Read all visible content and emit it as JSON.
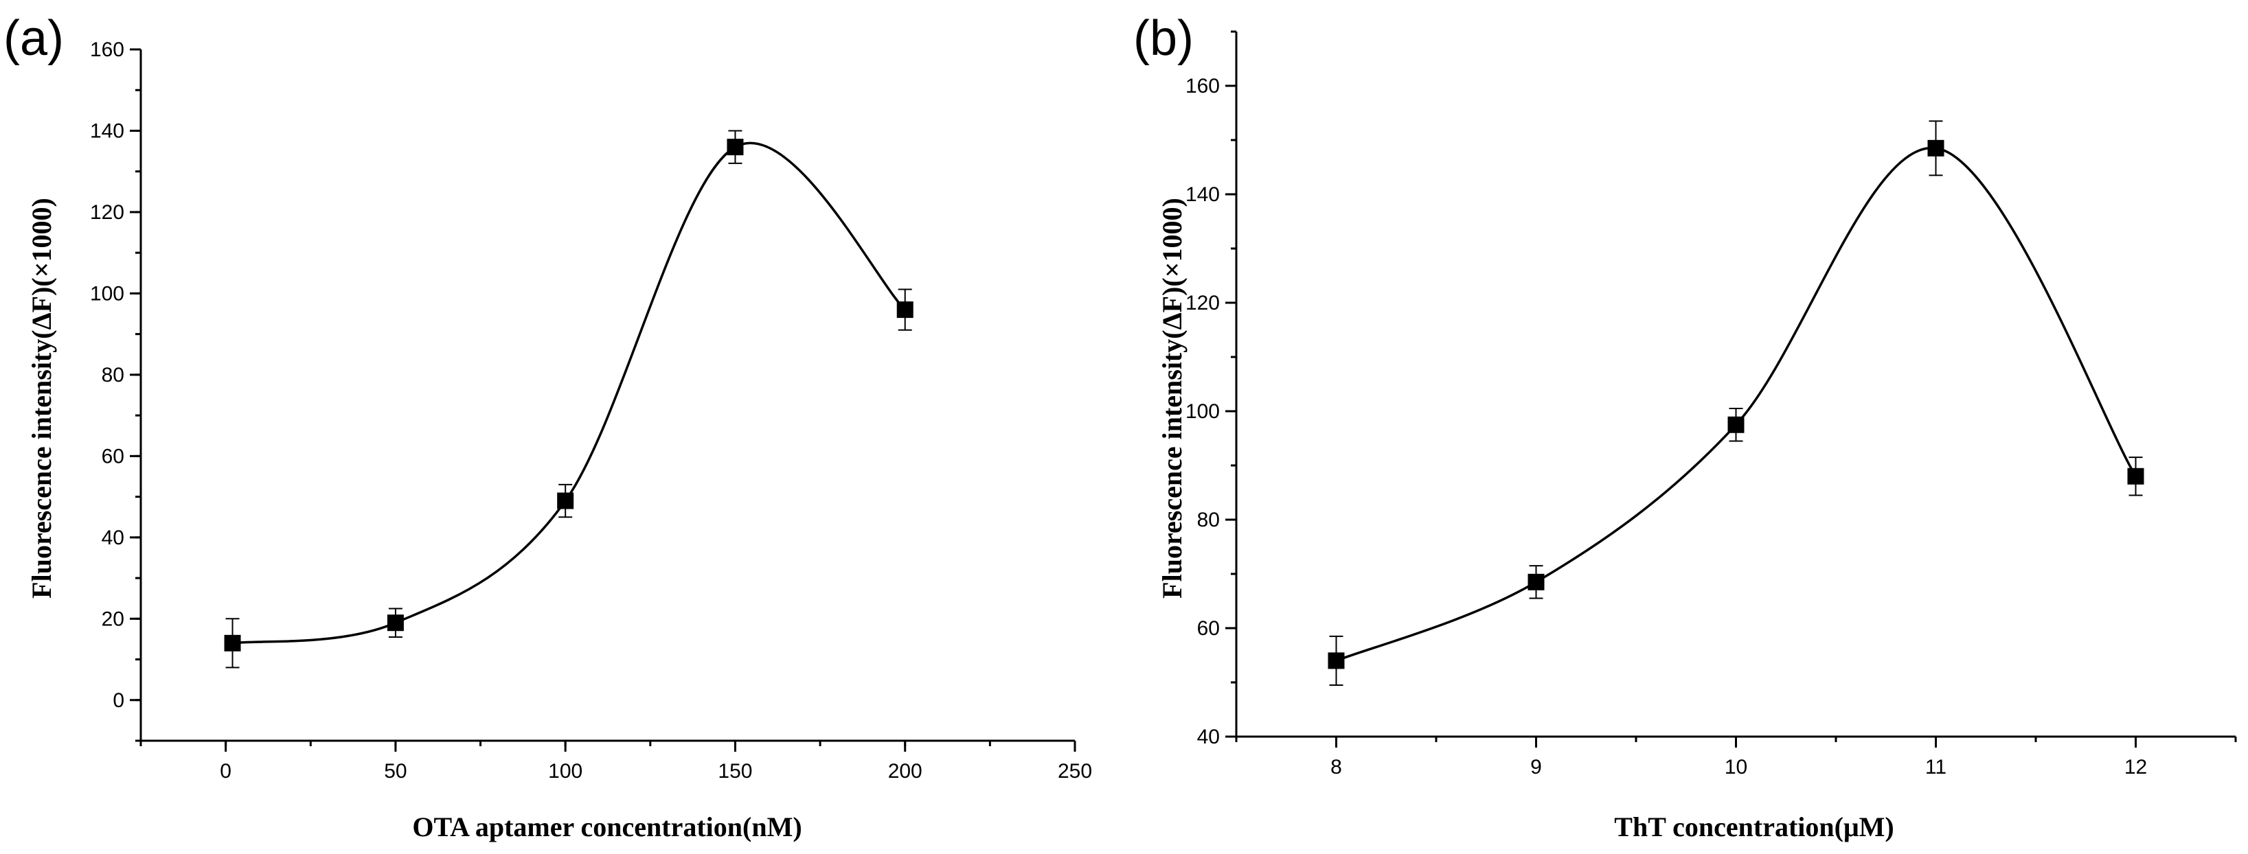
{
  "chart_data": [
    {
      "type": "scatter",
      "panel_label": "(a)",
      "title": "",
      "xlabel": "OTA aptamer concentration(nM)",
      "ylabel": "Fluorescence intensity(ΔF)(×1000)",
      "xlim": [
        -25,
        250
      ],
      "ylim": [
        -10,
        160
      ],
      "x_ticks": [
        0,
        50,
        100,
        150,
        200,
        250
      ],
      "x_minor_step": 25,
      "y_ticks": [
        0,
        20,
        40,
        60,
        80,
        100,
        120,
        140,
        160
      ],
      "y_minor_step": 10,
      "fit_line": "smooth spline",
      "series": [
        {
          "name": "OTA aptamer",
          "x": [
            2,
            50,
            100,
            150,
            200
          ],
          "y": [
            14,
            19,
            49,
            136,
            96
          ],
          "error": [
            6,
            3.5,
            4,
            4,
            5
          ]
        }
      ]
    },
    {
      "type": "scatter",
      "panel_label": "(b)",
      "title": "",
      "xlabel": "ThT concentration(μM)",
      "ylabel": "Fluorescence intensity(ΔF)(×1000)",
      "xlim": [
        7.5,
        12.5
      ],
      "ylim": [
        40,
        170
      ],
      "x_ticks": [
        8,
        9,
        10,
        11,
        12
      ],
      "x_minor_step": 0.5,
      "y_ticks": [
        40,
        60,
        80,
        100,
        120,
        140,
        160
      ],
      "y_minor_step": 10,
      "fit_line": "smooth spline",
      "series": [
        {
          "name": "ThT",
          "x": [
            8,
            9,
            10,
            11,
            12
          ],
          "y": [
            54,
            68.5,
            97.5,
            148.5,
            88
          ],
          "error": [
            4.5,
            3,
            3,
            5,
            3.5
          ]
        }
      ]
    }
  ]
}
